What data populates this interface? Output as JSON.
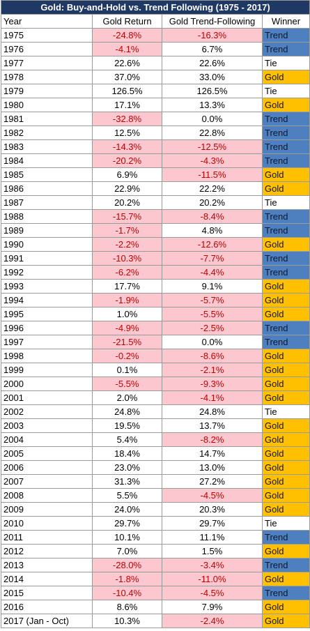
{
  "title": "Gold: Buy-and-Hold vs. Trend Following (1975 - 2017)",
  "headers": {
    "year": "Year",
    "gold_return": "Gold Return",
    "trend_following": "Gold Trend-Following",
    "winner": "Winner"
  },
  "colors": {
    "title_bg": "#1f3864",
    "negative_bg": "#fcc7ce",
    "negative_text": "#c00000",
    "trend": "#4e7fbf",
    "gold": "#ffc000",
    "tie": "#ffffff"
  },
  "rows": [
    {
      "year": "1975",
      "gold_return": "-24.8%",
      "trend_following": "-16.3%",
      "winner": "Trend"
    },
    {
      "year": "1976",
      "gold_return": "-4.1%",
      "trend_following": "6.7%",
      "winner": "Trend"
    },
    {
      "year": "1977",
      "gold_return": "22.6%",
      "trend_following": "22.6%",
      "winner": "Tie"
    },
    {
      "year": "1978",
      "gold_return": "37.0%",
      "trend_following": "33.0%",
      "winner": "Gold"
    },
    {
      "year": "1979",
      "gold_return": "126.5%",
      "trend_following": "126.5%",
      "winner": "Tie"
    },
    {
      "year": "1980",
      "gold_return": "17.1%",
      "trend_following": "13.3%",
      "winner": "Gold"
    },
    {
      "year": "1981",
      "gold_return": "-32.8%",
      "trend_following": "0.0%",
      "winner": "Trend"
    },
    {
      "year": "1982",
      "gold_return": "12.5%",
      "trend_following": "22.8%",
      "winner": "Trend"
    },
    {
      "year": "1983",
      "gold_return": "-14.3%",
      "trend_following": "-12.5%",
      "winner": "Trend"
    },
    {
      "year": "1984",
      "gold_return": "-20.2%",
      "trend_following": "-4.3%",
      "winner": "Trend"
    },
    {
      "year": "1985",
      "gold_return": "6.9%",
      "trend_following": "-11.5%",
      "winner": "Gold"
    },
    {
      "year": "1986",
      "gold_return": "22.9%",
      "trend_following": "22.2%",
      "winner": "Gold"
    },
    {
      "year": "1987",
      "gold_return": "20.2%",
      "trend_following": "20.2%",
      "winner": "Tie"
    },
    {
      "year": "1988",
      "gold_return": "-15.7%",
      "trend_following": "-8.4%",
      "winner": "Trend"
    },
    {
      "year": "1989",
      "gold_return": "-1.7%",
      "trend_following": "4.8%",
      "winner": "Trend"
    },
    {
      "year": "1990",
      "gold_return": "-2.2%",
      "trend_following": "-12.6%",
      "winner": "Gold"
    },
    {
      "year": "1991",
      "gold_return": "-10.3%",
      "trend_following": "-7.7%",
      "winner": "Trend"
    },
    {
      "year": "1992",
      "gold_return": "-6.2%",
      "trend_following": "-4.4%",
      "winner": "Trend"
    },
    {
      "year": "1993",
      "gold_return": "17.7%",
      "trend_following": "9.1%",
      "winner": "Gold"
    },
    {
      "year": "1994",
      "gold_return": "-1.9%",
      "trend_following": "-5.7%",
      "winner": "Gold"
    },
    {
      "year": "1995",
      "gold_return": "1.0%",
      "trend_following": "-5.5%",
      "winner": "Gold"
    },
    {
      "year": "1996",
      "gold_return": "-4.9%",
      "trend_following": "-2.5%",
      "winner": "Trend"
    },
    {
      "year": "1997",
      "gold_return": "-21.5%",
      "trend_following": "0.0%",
      "winner": "Trend"
    },
    {
      "year": "1998",
      "gold_return": "-0.2%",
      "trend_following": "-8.6%",
      "winner": "Gold"
    },
    {
      "year": "1999",
      "gold_return": "0.1%",
      "trend_following": "-2.1%",
      "winner": "Gold"
    },
    {
      "year": "2000",
      "gold_return": "-5.5%",
      "trend_following": "-9.3%",
      "winner": "Gold"
    },
    {
      "year": "2001",
      "gold_return": "2.0%",
      "trend_following": "-4.1%",
      "winner": "Gold"
    },
    {
      "year": "2002",
      "gold_return": "24.8%",
      "trend_following": "24.8%",
      "winner": "Tie"
    },
    {
      "year": "2003",
      "gold_return": "19.5%",
      "trend_following": "13.7%",
      "winner": "Gold"
    },
    {
      "year": "2004",
      "gold_return": "5.4%",
      "trend_following": "-8.2%",
      "winner": "Gold"
    },
    {
      "year": "2005",
      "gold_return": "18.4%",
      "trend_following": "14.7%",
      "winner": "Gold"
    },
    {
      "year": "2006",
      "gold_return": "23.0%",
      "trend_following": "13.0%",
      "winner": "Gold"
    },
    {
      "year": "2007",
      "gold_return": "31.3%",
      "trend_following": "27.2%",
      "winner": "Gold"
    },
    {
      "year": "2008",
      "gold_return": "5.5%",
      "trend_following": "-4.5%",
      "winner": "Gold"
    },
    {
      "year": "2009",
      "gold_return": "24.0%",
      "trend_following": "20.3%",
      "winner": "Gold"
    },
    {
      "year": "2010",
      "gold_return": "29.7%",
      "trend_following": "29.7%",
      "winner": "Tie"
    },
    {
      "year": "2011",
      "gold_return": "10.1%",
      "trend_following": "11.1%",
      "winner": "Trend"
    },
    {
      "year": "2012",
      "gold_return": "7.0%",
      "trend_following": "1.5%",
      "winner": "Gold"
    },
    {
      "year": "2013",
      "gold_return": "-28.0%",
      "trend_following": "-3.4%",
      "winner": "Trend"
    },
    {
      "year": "2014",
      "gold_return": "-1.8%",
      "trend_following": "-11.0%",
      "winner": "Gold"
    },
    {
      "year": "2015",
      "gold_return": "-10.4%",
      "trend_following": "-4.5%",
      "winner": "Trend"
    },
    {
      "year": "2016",
      "gold_return": "8.6%",
      "trend_following": "7.9%",
      "winner": "Gold"
    },
    {
      "year": "2017 (Jan - Oct)",
      "gold_return": "10.3%",
      "trend_following": "-2.4%",
      "winner": "Gold"
    }
  ]
}
